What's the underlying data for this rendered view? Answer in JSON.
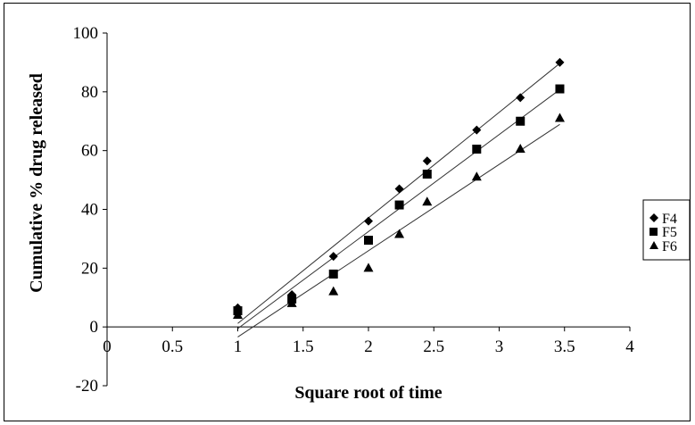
{
  "chart_data": {
    "type": "scatter",
    "xlabel": "Square root of time",
    "ylabel": "Cumulative % drug released",
    "xlim": [
      0,
      4
    ],
    "ylim": [
      -20,
      100
    ],
    "x_ticks": [
      "0",
      "0.5",
      "1",
      "1.5",
      "2",
      "2.5",
      "3",
      "3.5",
      "4"
    ],
    "y_ticks": [
      "-20",
      "0",
      "20",
      "40",
      "60",
      "80",
      "100"
    ],
    "grid": false,
    "legend_position": "right",
    "trendlines": true,
    "series": [
      {
        "name": "F4",
        "marker": "diamond",
        "color": "#000000",
        "x": [
          1,
          1.414,
          1.732,
          2,
          2.236,
          2.449,
          2.828,
          3.162,
          3.464
        ],
        "y": [
          6.5,
          11,
          24,
          36,
          47,
          56.5,
          67,
          78,
          90
        ]
      },
      {
        "name": "F5",
        "marker": "square",
        "color": "#000000",
        "x": [
          1,
          1.414,
          1.732,
          2,
          2.236,
          2.449,
          2.828,
          3.162,
          3.464
        ],
        "y": [
          5.5,
          9.5,
          18,
          29.5,
          41.5,
          52,
          60.5,
          70,
          81
        ]
      },
      {
        "name": "F6",
        "marker": "triangle",
        "color": "#000000",
        "x": [
          1,
          1.414,
          1.732,
          2,
          2.236,
          2.449,
          2.828,
          3.162,
          3.464
        ],
        "y": [
          4,
          8,
          12,
          20,
          31.5,
          42.5,
          51,
          60.5,
          71
        ]
      }
    ]
  }
}
